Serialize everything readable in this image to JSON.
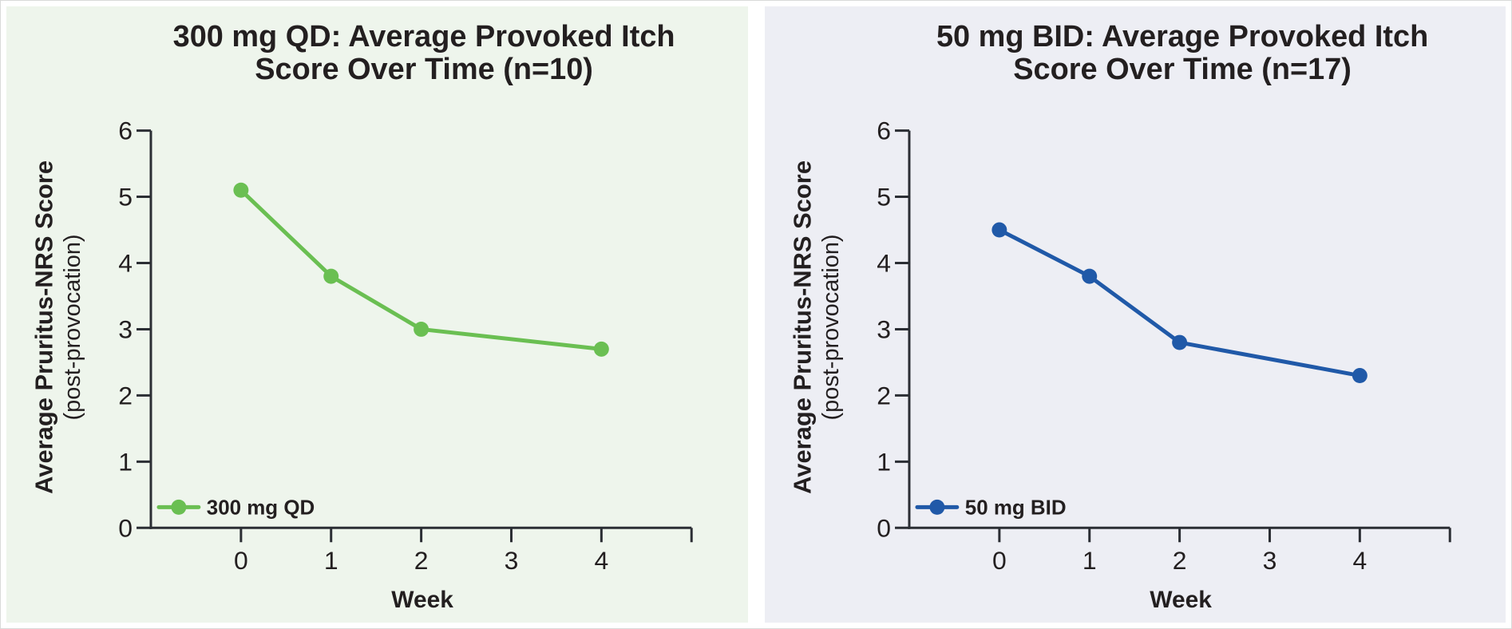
{
  "figure": {
    "xlabel": "Week",
    "ylabel": "Average Pruritus-NRS Score",
    "ylabel_sub": "(post-provocation)"
  },
  "chart_data": [
    {
      "type": "line",
      "title": "300 mg QD: Average Provoked Itch Score Over Time (n=10)",
      "title_lines": [
        "300 mg QD: Average Provoked Itch",
        "Score Over Time (n=10)"
      ],
      "xlabel": "Week",
      "ylabel": "Average Pruritus-NRS Score",
      "ylabel_sub": "(post-provocation)",
      "x": [
        0,
        1,
        2,
        4
      ],
      "series": [
        {
          "name": "300 mg QD",
          "values": [
            5.1,
            3.8,
            3.0,
            2.7
          ]
        }
      ],
      "xlim": [
        -1,
        5
      ],
      "ylim": [
        0,
        6
      ],
      "x_ticks": [
        0,
        1,
        2,
        3,
        4
      ],
      "y_ticks": [
        0,
        1,
        2,
        3,
        4,
        5,
        6
      ],
      "grid": false,
      "legend_position": "lower-left-inside",
      "legend_label": "300 mg QD",
      "colors": {
        "series": "#6abf52",
        "background": "#eef5ec",
        "axis": "#2b2e34",
        "text": "#231f20"
      }
    },
    {
      "type": "line",
      "title": "50 mg BID: Average Provoked Itch Score Over Time (n=17)",
      "title_lines": [
        "50 mg BID: Average Provoked Itch",
        "Score Over Time (n=17)"
      ],
      "xlabel": "Week",
      "ylabel": "Average Pruritus-NRS Score",
      "ylabel_sub": "(post-provocation)",
      "x": [
        0,
        1,
        2,
        4
      ],
      "series": [
        {
          "name": "50 mg BID",
          "values": [
            4.5,
            3.8,
            2.8,
            2.3
          ]
        }
      ],
      "xlim": [
        -1,
        5
      ],
      "ylim": [
        0,
        6
      ],
      "x_ticks": [
        0,
        1,
        2,
        3,
        4
      ],
      "y_ticks": [
        0,
        1,
        2,
        3,
        4,
        5,
        6
      ],
      "grid": false,
      "legend_position": "lower-left-inside",
      "legend_label": "50 mg BID",
      "colors": {
        "series": "#2059a8",
        "background": "#edeef4",
        "axis": "#2b2e34",
        "text": "#231f20"
      }
    }
  ]
}
